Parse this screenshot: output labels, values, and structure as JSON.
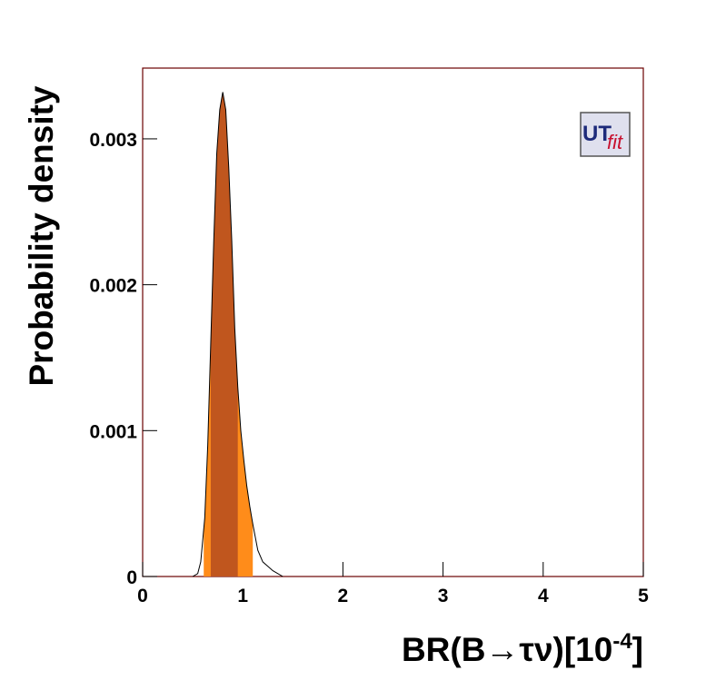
{
  "chart_data": {
    "type": "density",
    "xlabel": {
      "main": "BR(B→τν)[10",
      "sup": "-4",
      "end": "]"
    },
    "ylabel": "Probability density",
    "logo": {
      "main": "UT",
      "sub": "fit"
    },
    "x": [
      0.5,
      0.55,
      0.58,
      0.62,
      0.65,
      0.68,
      0.71,
      0.74,
      0.77,
      0.8,
      0.83,
      0.86,
      0.89,
      0.92,
      0.95,
      0.98,
      1.01,
      1.04,
      1.07,
      1.1,
      1.15,
      1.2,
      1.25,
      1.3,
      1.35,
      1.4
    ],
    "values": [
      0,
      2e-05,
      0.0001,
      0.0004,
      0.0009,
      0.0016,
      0.0023,
      0.0029,
      0.0032,
      0.00332,
      0.0032,
      0.0028,
      0.0023,
      0.0017,
      0.0013,
      0.001,
      0.0008,
      0.00062,
      0.00048,
      0.00036,
      0.00018,
      0.0001,
      7e-05,
      4e-05,
      2e-05,
      0
    ],
    "interval_95": [
      0.61,
      1.1
    ],
    "interval_68": [
      0.68,
      0.95
    ],
    "color_95": "#ff8c1a",
    "color_68": "#c0561e",
    "line_color": "#000000",
    "xlim": [
      0,
      5
    ],
    "ylim": [
      0,
      0.003485
    ],
    "xticks": [
      0,
      1,
      2,
      3,
      4,
      5
    ],
    "yticks": [
      0,
      0.001,
      0.002,
      0.003
    ]
  }
}
